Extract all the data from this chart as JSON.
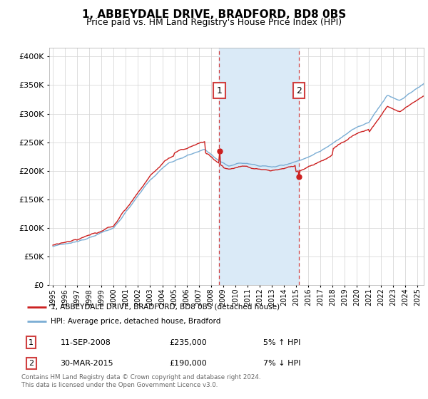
{
  "title": "1, ABBEYDALE DRIVE, BRADFORD, BD8 0BS",
  "subtitle": "Price paid vs. HM Land Registry's House Price Index (HPI)",
  "title_fontsize": 11,
  "subtitle_fontsize": 9,
  "yticks": [
    0,
    50000,
    100000,
    150000,
    200000,
    250000,
    300000,
    350000,
    400000
  ],
  "ylim": [
    0,
    415000
  ],
  "xlim_start": 1994.7,
  "xlim_end": 2025.5,
  "sale1_date": 2008.69,
  "sale1_price": 235000,
  "sale1_label": "1",
  "sale2_date": 2015.24,
  "sale2_price": 190000,
  "sale2_label": "2",
  "background_color": "#ffffff",
  "shade_color": "#daeaf7",
  "vline_color": "#d04040",
  "grid_color": "#d8d8d8",
  "red_line_color": "#cc2020",
  "blue_line_color": "#7aadd4",
  "legend_line1": "1, ABBEYDALE DRIVE, BRADFORD, BD8 0BS (detached house)",
  "legend_line2": "HPI: Average price, detached house, Bradford",
  "table_row1_num": "1",
  "table_row1_date": "11-SEP-2008",
  "table_row1_price": "£235,000",
  "table_row1_hpi": "5% ↑ HPI",
  "table_row2_num": "2",
  "table_row2_date": "30-MAR-2015",
  "table_row2_price": "£190,000",
  "table_row2_hpi": "7% ↓ HPI",
  "footer": "Contains HM Land Registry data © Crown copyright and database right 2024.\nThis data is licensed under the Open Government Licence v3.0."
}
